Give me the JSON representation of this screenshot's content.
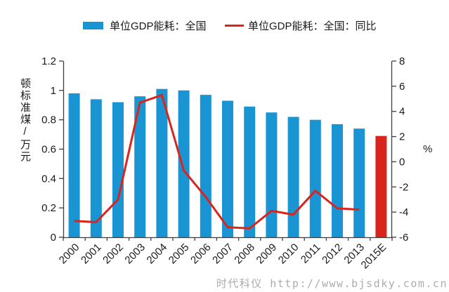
{
  "legend": {
    "bar_label": "单位GDP能耗：全国",
    "line_label": "单位GDP能耗：全国：同比"
  },
  "watermark": "时代科仪 http://www.bjsdky.com.cn",
  "colors": {
    "bar_blue": "#1995d4",
    "bar_red": "#da251c",
    "line_red": "#da251c",
    "axis": "#3f3f3f",
    "text": "#1a1a1a",
    "watermark": "#acacac"
  },
  "chart_data": {
    "type": "bar+line",
    "title": "",
    "categories": [
      "2000",
      "2001",
      "2002",
      "2003",
      "2004",
      "2005",
      "2006",
      "2007",
      "2008",
      "2009",
      "2010",
      "2011",
      "2012",
      "2013",
      "2015E"
    ],
    "series": [
      {
        "name": "单位GDP能耗：全国",
        "type": "bar",
        "axis": "left",
        "values": [
          0.98,
          0.94,
          0.92,
          0.96,
          1.01,
          1.0,
          0.97,
          0.93,
          0.89,
          0.85,
          0.82,
          0.8,
          0.77,
          0.74,
          0.69
        ]
      },
      {
        "name": "单位GDP能耗：全国：同比",
        "type": "line",
        "axis": "right",
        "values": [
          -4.7,
          -4.8,
          -3.0,
          4.7,
          5.3,
          -0.7,
          -2.8,
          -5.2,
          -5.3,
          -3.9,
          -4.2,
          -2.3,
          -3.7,
          -3.8,
          null
        ]
      }
    ],
    "highlight_category": "2015E",
    "ylabel_left": "顿标准煤/万元",
    "ylabel_right": "%",
    "ylim_left": [
      0,
      1.2
    ],
    "yticks_left": [
      "0",
      "0.2",
      "0.4",
      "0.6",
      "0.8",
      "1",
      "1.2"
    ],
    "ylim_right": [
      -6,
      8
    ],
    "yticks_right": [
      "-6",
      "-4",
      "-2",
      "0",
      "2",
      "4",
      "6",
      "8"
    ],
    "grid": false,
    "legend_position": "top"
  }
}
